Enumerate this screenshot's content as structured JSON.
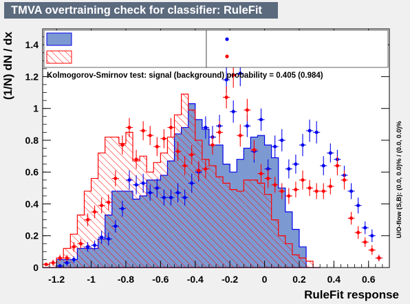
{
  "title": "TMVA overtraining check for classifier: RuleFit",
  "ks_text": "Kolmogorov-Smirnov test: signal (background) probability = 0.405 (0.984)",
  "overflow_text": "U/O-flow (S,B): (0.0, 0.0)% / (0.0, 0.0)%",
  "legend_entries": [
    "",
    "",
    "",
    ""
  ],
  "colors": {
    "signal_fill": "#7d99d1",
    "signal_line": "#0000ee",
    "signal_points": "#0000ee",
    "background_hatch": "#ff0000",
    "background_points": "#ff0000",
    "title_box": "#5c6a7e",
    "frame_background": "#ffffff",
    "canvas_background": "#f0f0f0"
  },
  "chart_data": {
    "type": "bar",
    "title": "TMVA overtraining check for classifier: RuleFit",
    "xlabel": "RuleFit response",
    "ylabel": "(1/N) dN / dx",
    "xlim": [
      -1.28,
      0.72
    ],
    "ylim": [
      0,
      1.5
    ],
    "xticks": [
      -1.2,
      -1,
      -0.8,
      -0.6,
      -0.4,
      -0.2,
      0,
      0.2,
      0.4,
      0.6
    ],
    "yticks": [
      0,
      0.2,
      0.4,
      0.6,
      0.8,
      1,
      1.2,
      1.4
    ],
    "bin_edges_start": -1.28,
    "bin_width": 0.04,
    "series": [
      {
        "kind": "histogram-filled",
        "values": [
          0.0,
          0.0,
          0.05,
          0.05,
          0.05,
          0.12,
          0.12,
          0.12,
          0.18,
          0.33,
          0.48,
          0.48,
          0.48,
          0.43,
          0.45,
          0.55,
          0.55,
          0.58,
          0.67,
          0.84,
          0.88,
          1.03,
          0.93,
          0.87,
          0.77,
          0.77,
          0.65,
          0.6,
          0.68,
          0.75,
          0.82,
          0.83,
          0.77,
          0.69,
          0.5,
          0.35,
          0.24,
          0.13,
          0.0,
          0.0
        ]
      },
      {
        "kind": "histogram-hatched",
        "values": [
          0.02,
          0.03,
          0.06,
          0.12,
          0.21,
          0.33,
          0.48,
          0.56,
          0.72,
          0.82,
          0.82,
          0.78,
          0.85,
          0.67,
          0.7,
          0.6,
          0.66,
          0.72,
          0.82,
          0.96,
          1.09,
          0.99,
          0.8,
          0.68,
          0.64,
          0.57,
          0.53,
          0.49,
          0.48,
          0.55,
          0.55,
          0.53,
          0.46,
          0.3,
          0.2,
          0.15,
          0.08,
          0.06,
          0.04,
          0.0
        ]
      },
      {
        "kind": "points",
        "x": [
          -1.18,
          -1.14,
          -1.1,
          -1.02,
          -0.98,
          -0.94,
          -0.9,
          -0.86,
          -0.82,
          -0.78,
          -0.74,
          -0.7,
          -0.66,
          -0.62,
          -0.58,
          -0.54,
          -0.5,
          -0.46,
          -0.42,
          -0.38,
          -0.34,
          -0.3,
          -0.26,
          -0.22,
          -0.18,
          -0.14,
          -0.1,
          -0.06,
          -0.02,
          0.02,
          0.06,
          0.1,
          0.14,
          0.18,
          0.22,
          0.26,
          0.3,
          0.34,
          0.38,
          0.42,
          0.46,
          0.5,
          0.54,
          0.58,
          0.62,
          0.66
        ],
        "y": [
          0.01,
          0.03,
          0.05,
          0.13,
          0.14,
          0.19,
          0.18,
          0.26,
          0.37,
          0.55,
          0.52,
          0.53,
          0.47,
          0.5,
          0.44,
          0.44,
          0.47,
          0.44,
          0.53,
          0.6,
          0.88,
          0.82,
          0.89,
          1.18,
          0.98,
          1.22,
          0.89,
          0.73,
          0.93,
          0.62,
          0.76,
          0.8,
          0.62,
          0.65,
          0.77,
          0.86,
          0.85,
          0.64,
          0.72,
          0.68,
          0.58,
          0.48,
          0.39,
          0.25,
          0.2,
          0.06
        ],
        "yerr": [
          0.01,
          0.02,
          0.02,
          0.03,
          0.03,
          0.04,
          0.04,
          0.04,
          0.05,
          0.06,
          0.06,
          0.06,
          0.05,
          0.06,
          0.05,
          0.05,
          0.06,
          0.05,
          0.06,
          0.06,
          0.07,
          0.07,
          0.07,
          0.08,
          0.07,
          0.08,
          0.07,
          0.07,
          0.07,
          0.06,
          0.07,
          0.07,
          0.06,
          0.06,
          0.07,
          0.07,
          0.07,
          0.06,
          0.06,
          0.06,
          0.06,
          0.05,
          0.05,
          0.04,
          0.04,
          0.02
        ]
      },
      {
        "kind": "points",
        "x": [
          -1.26,
          -1.22,
          -1.18,
          -1.14,
          -1.1,
          -1.06,
          -1.02,
          -0.98,
          -0.94,
          -0.9,
          -0.86,
          -0.82,
          -0.78,
          -0.74,
          -0.7,
          -0.66,
          -0.62,
          -0.58,
          -0.54,
          -0.5,
          -0.46,
          -0.42,
          -0.38,
          -0.34,
          -0.3,
          -0.26,
          -0.22,
          -0.18,
          -0.14,
          -0.1,
          -0.06,
          -0.02,
          0.02,
          0.06,
          0.1,
          0.14,
          0.18,
          0.22,
          0.26,
          0.3,
          0.34,
          0.38,
          0.42,
          0.46,
          0.5,
          0.54,
          0.58,
          0.62,
          0.66
        ],
        "y": [
          0.02,
          0.03,
          0.06,
          0.06,
          0.13,
          0.15,
          0.3,
          0.35,
          0.39,
          0.41,
          0.56,
          0.77,
          0.88,
          0.68,
          0.86,
          0.83,
          0.76,
          0.81,
          0.88,
          0.73,
          0.64,
          0.71,
          0.61,
          0.62,
          0.77,
          0.85,
          1.07,
          1.21,
          0.83,
          0.99,
          0.74,
          0.59,
          0.56,
          0.52,
          0.48,
          0.45,
          0.49,
          0.55,
          0.5,
          0.48,
          0.48,
          0.51,
          0.64,
          0.55,
          0.31,
          0.22,
          0.16,
          0.11,
          0.06
        ],
        "yerr": [
          0.01,
          0.02,
          0.02,
          0.02,
          0.03,
          0.03,
          0.04,
          0.04,
          0.05,
          0.05,
          0.05,
          0.06,
          0.06,
          0.06,
          0.06,
          0.06,
          0.06,
          0.06,
          0.06,
          0.06,
          0.06,
          0.06,
          0.06,
          0.06,
          0.06,
          0.07,
          0.07,
          0.08,
          0.07,
          0.07,
          0.06,
          0.06,
          0.06,
          0.05,
          0.05,
          0.05,
          0.05,
          0.06,
          0.05,
          0.05,
          0.05,
          0.05,
          0.06,
          0.06,
          0.04,
          0.04,
          0.03,
          0.03,
          0.02
        ]
      }
    ]
  }
}
